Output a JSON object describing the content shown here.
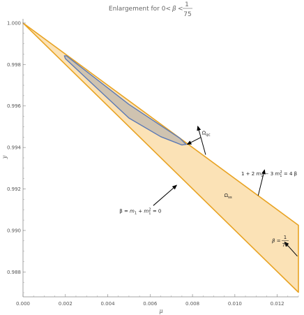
{
  "chart_data": {
    "type": "area",
    "title_parts": {
      "lead": "Enlargement for 0<",
      "beta": "β",
      "lt": "<",
      "num": "1",
      "den": "75"
    },
    "xlabel": "μ",
    "ylabel": "y",
    "xlim": [
      0,
      0.013
    ],
    "ylim": [
      0.9868,
      1.0002
    ],
    "xticks": [
      0.0,
      0.002,
      0.004,
      0.006,
      0.008,
      0.01,
      0.012
    ],
    "xtick_labels": [
      "0.000",
      "0.002",
      "0.004",
      "0.006",
      "0.008",
      "0.010",
      "0.012"
    ],
    "yticks": [
      0.988,
      0.99,
      0.992,
      0.994,
      0.996,
      0.998,
      1.0
    ],
    "ytick_labels": [
      "0.988",
      "0.990",
      "0.992",
      "0.994",
      "0.996",
      "0.998",
      "1.000"
    ],
    "colors": {
      "ss_fill": "#fbe2b6",
      "ss_edge": "#e8a323",
      "qc_fill": "#cfc3b0",
      "qc_edge": "#5b79b5",
      "axis": "#888888",
      "arrow": "#000000"
    },
    "regions": [
      {
        "id": "omega-ss",
        "polygon": [
          [
            0.0,
            1.0
          ],
          [
            0.013,
            0.99025
          ],
          [
            0.013,
            0.98702
          ],
          [
            0.0,
            1.0
          ]
        ]
      },
      {
        "id": "omega-qc",
        "polygon": [
          [
            0.00195,
            0.99842
          ],
          [
            0.002,
            0.99828
          ],
          [
            0.0035,
            0.99685
          ],
          [
            0.005,
            0.99542
          ],
          [
            0.0065,
            0.99452
          ],
          [
            0.0075,
            0.99412
          ],
          [
            0.0077,
            0.99415
          ],
          [
            0.0074,
            0.99445
          ],
          [
            0.005,
            0.99608
          ],
          [
            0.00205,
            0.99842
          ],
          [
            0.00195,
            0.99842
          ]
        ]
      }
    ],
    "annotations": [
      {
        "id": "omega-qc",
        "main": "Ω",
        "sub": "qc",
        "text_at": [
          0.00845,
          0.99462
        ],
        "arrow_from": [
          0.00838,
          0.99448
        ],
        "arrow_to": [
          0.00775,
          0.99415
        ]
      },
      {
        "id": "omega-ss",
        "main": "Ω",
        "sub": "ss",
        "text_at": [
          0.0095,
          0.99162
        ]
      },
      {
        "id": "curve-1",
        "parts": [
          "β = ",
          "m",
          "1",
          " + ",
          "m",
          "1",
          "2",
          " = 0"
        ],
        "text_at": [
          0.00455,
          0.99085
        ],
        "arrow_from": [
          0.00615,
          0.9912
        ],
        "arrow_to": [
          0.00725,
          0.99218
        ]
      },
      {
        "id": "curve-2",
        "parts": [
          "1 + 2 ",
          "m",
          "1",
          " − 3 ",
          "m",
          "1",
          "2",
          " = 4 β"
        ],
        "text_at": [
          0.0103,
          0.99265
        ],
        "arrow_from": [
          0.0111,
          0.99168
        ],
        "arrow_to": [
          0.0114,
          0.99292
        ]
      },
      {
        "id": "beta-1-75",
        "parts": [
          "β = ",
          "1",
          "75"
        ],
        "text_at": [
          0.01175,
          0.98942
        ],
        "arrow_from": [
          0.01295,
          0.98876
        ],
        "arrow_to": [
          0.01235,
          0.98944
        ]
      },
      {
        "id": "pointer-small",
        "arrow_from": [
          0.00862,
          0.99365
        ],
        "arrow_to": [
          0.00825,
          0.99502
        ]
      }
    ]
  }
}
